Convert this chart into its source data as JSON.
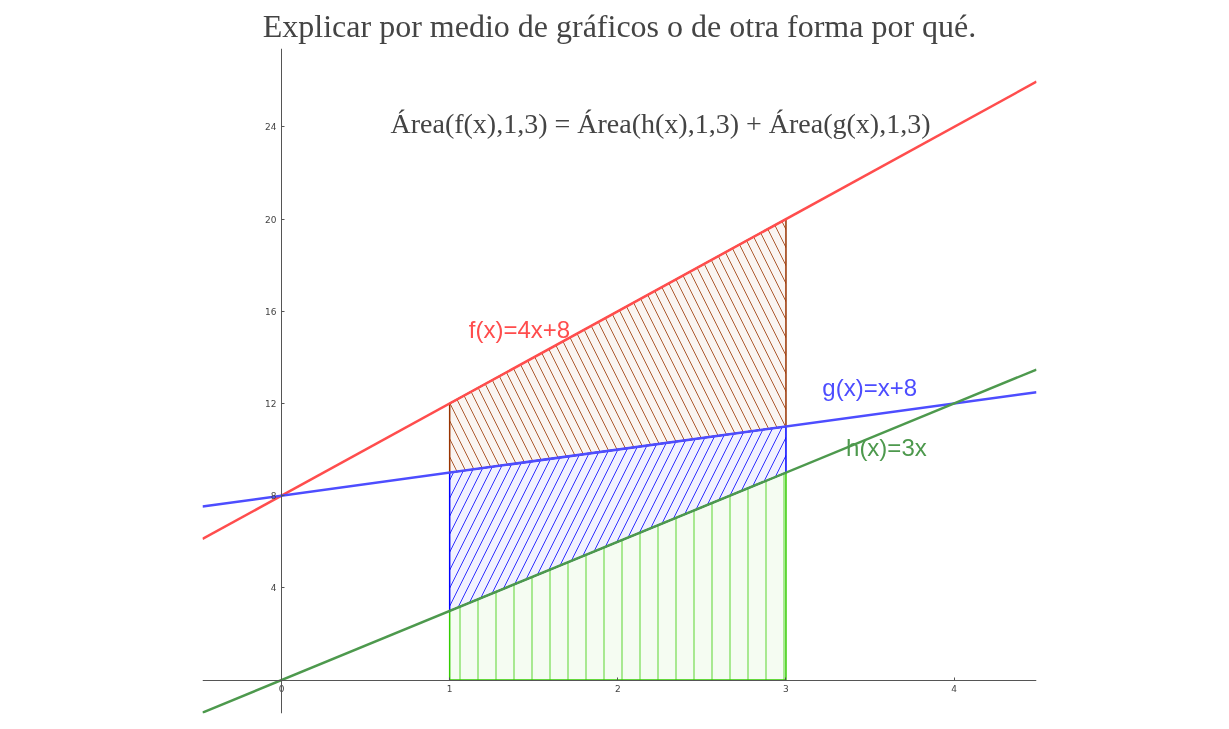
{
  "chart_data": {
    "type": "line",
    "title": "Explicar por medio de gráficos o de otra forma por qué.",
    "annotations": [
      "Área(f(x),1,3) = Área(h(x),1,3) + Área(g(x),1,3)"
    ],
    "xlim": [
      -0.47,
      4.49
    ],
    "ylim": [
      -1.45,
      27.4
    ],
    "xticks": [
      0,
      1,
      2,
      3,
      4
    ],
    "yticks": [
      4,
      8,
      12,
      16,
      20,
      24
    ],
    "grid": false,
    "stacked": true,
    "series": [
      {
        "type": "area",
        "color": "#33cc00",
        "x": [
          1,
          3
        ],
        "values": [
          3,
          9
        ]
      },
      {
        "type": "area",
        "color": "#0000ff",
        "x": [
          1,
          3
        ],
        "values": [
          6,
          2
        ]
      },
      {
        "type": "area",
        "color": "#993300",
        "x": [
          1,
          3
        ],
        "values": [
          3,
          9
        ]
      },
      {
        "name": "f(x)=4x+8",
        "color": "#ff4d4d",
        "x": [
          -0.47,
          4.49
        ],
        "values": [
          6.12,
          25.96
        ]
      },
      {
        "name": "g(x)=x+8",
        "color": "#4d4dff",
        "x": [
          -0.47,
          4.49
        ],
        "values": [
          7.53,
          12.49
        ]
      },
      {
        "name": "h(x)=3x",
        "color": "#4d994d",
        "x": [
          -0.47,
          4.49
        ],
        "values": [
          -1.41,
          13.47
        ]
      }
    ]
  }
}
